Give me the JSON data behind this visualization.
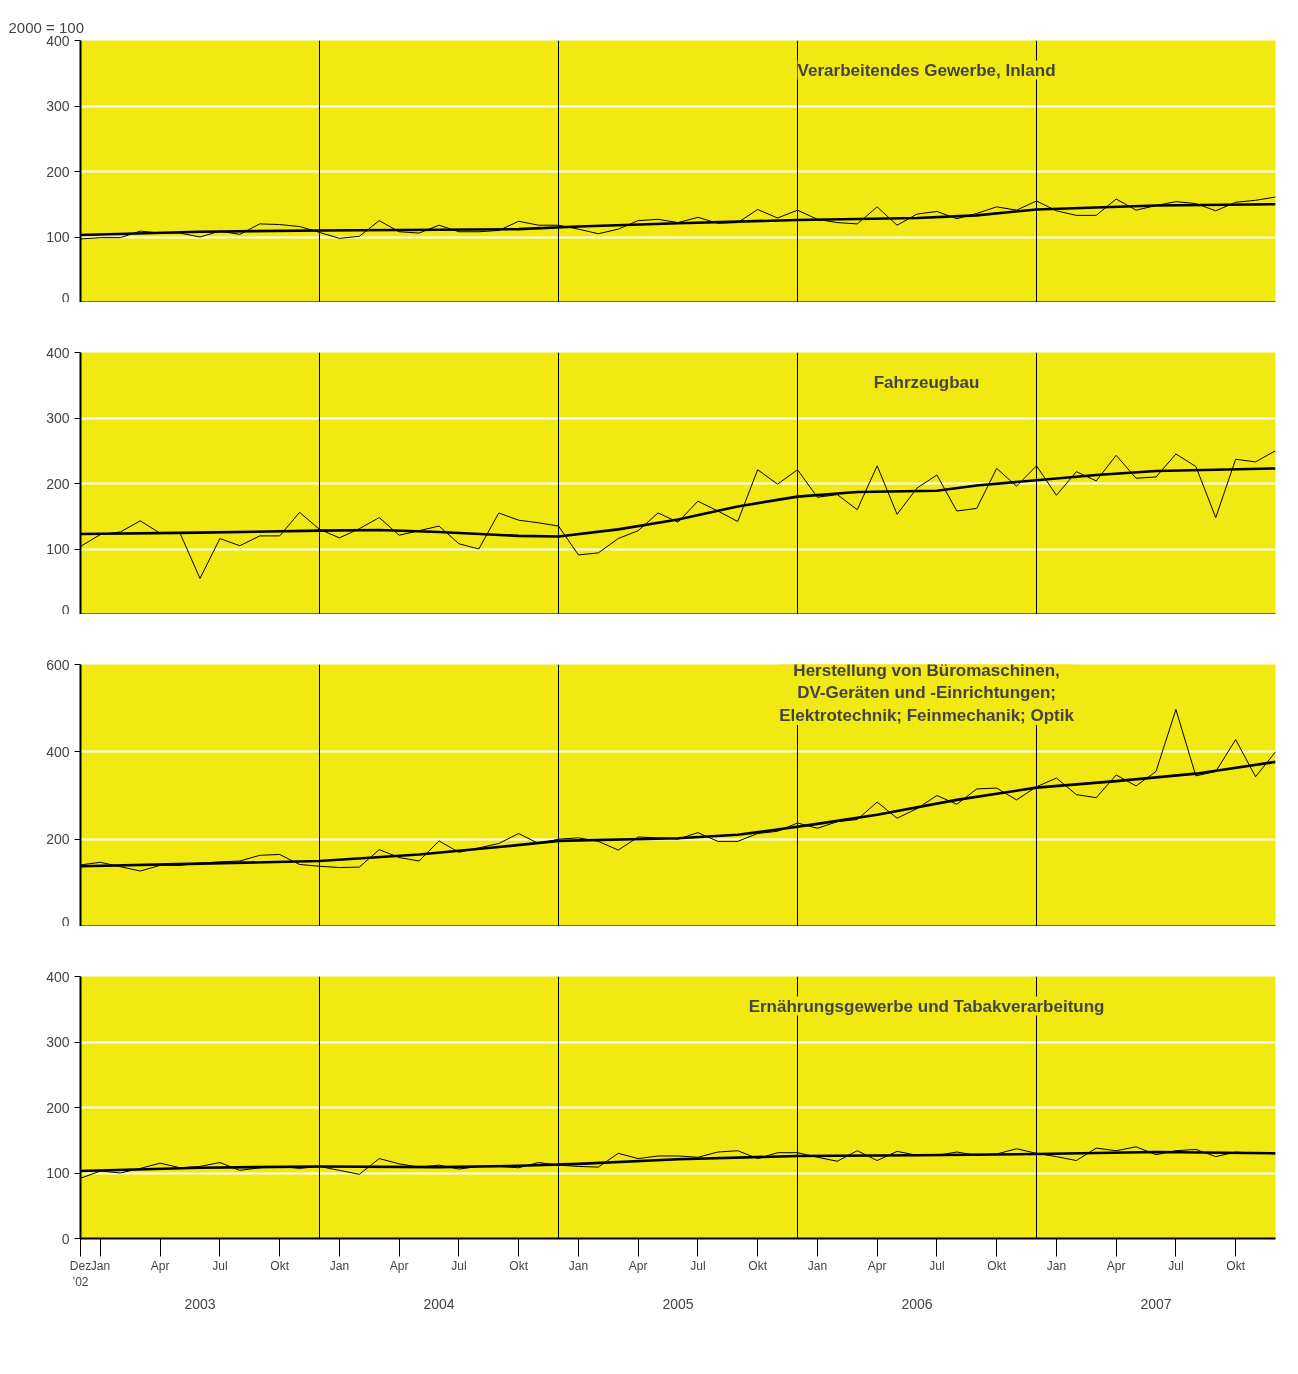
{
  "chart_data": [
    {
      "type": "line",
      "title": "Verarbeitendes Gewerbe, Inland",
      "ylabel": "2000 = 100",
      "xlim": [
        "2002-12",
        "2007-12"
      ],
      "ylim": [
        0,
        400
      ],
      "yticks": [
        0,
        100,
        200,
        300,
        400
      ],
      "grid": "y",
      "tick_labels": "y",
      "x": [
        "2002-12",
        "2003-01",
        "2003-02",
        "2003-03",
        "2003-04",
        "2003-05",
        "2003-06",
        "2003-07",
        "2003-08",
        "2003-09",
        "2003-10",
        "2003-11",
        "2003-12",
        "2004-01",
        "2004-02",
        "2004-03",
        "2004-04",
        "2004-05",
        "2004-06",
        "2004-07",
        "2004-08",
        "2004-09",
        "2004-10",
        "2004-11",
        "2004-12",
        "2005-01",
        "2005-02",
        "2005-03",
        "2005-04",
        "2005-05",
        "2005-06",
        "2005-07",
        "2005-08",
        "2005-09",
        "2005-10",
        "2005-11",
        "2005-12",
        "2006-01",
        "2006-02",
        "2006-03",
        "2006-04",
        "2006-05",
        "2006-06",
        "2006-07",
        "2006-08",
        "2006-09",
        "2006-10",
        "2006-11",
        "2006-12",
        "2007-01",
        "2007-02",
        "2007-03",
        "2007-04",
        "2007-05",
        "2007-06",
        "2007-07",
        "2007-08",
        "2007-09",
        "2007-10",
        "2007-11",
        "2007-12"
      ],
      "ref_lines": [
        {
          "axis": "x",
          "value": "2003-12",
          "color": "#000000"
        },
        {
          "axis": "x",
          "value": "2004-12",
          "color": "#000000"
        },
        {
          "axis": "x",
          "value": "2005-12",
          "color": "#000000"
        },
        {
          "axis": "x",
          "value": "2006-12",
          "color": "#000000"
        }
      ],
      "series": [
        {
          "color": "#000000",
          "values": [
            97,
            99,
            99,
            109,
            106,
            106,
            100,
            109,
            104,
            120,
            119,
            116,
            107,
            98,
            101,
            125,
            108,
            106,
            118,
            108,
            108,
            110,
            124,
            118,
            118,
            112,
            105,
            112,
            125,
            127,
            122,
            130,
            121,
            122,
            142,
            129,
            141,
            127,
            122,
            120,
            146,
            118,
            135,
            139,
            128,
            136,
            146,
            141,
            155,
            140,
            133,
            133,
            158,
            141,
            148,
            154,
            151,
            140,
            153,
            156,
            161
          ]
        },
        {
          "type": "line",
          "color": "#000000",
          "x": [
            "2002-12",
            "2003-06",
            "2003-12",
            "2004-06",
            "2004-10",
            "2005-01",
            "2005-06",
            "2005-12",
            "2006-06",
            "2006-09",
            "2006-12",
            "2007-06",
            "2007-12"
          ],
          "values": [
            103,
            108,
            110,
            111,
            112,
            116,
            121,
            126,
            129,
            133,
            142,
            148,
            150
          ]
        }
      ]
    },
    {
      "type": "line",
      "title": "Fahrzeugbau",
      "xlim": [
        "2002-12",
        "2007-12"
      ],
      "ylim": [
        0,
        400
      ],
      "yticks": [
        0,
        100,
        200,
        300,
        400
      ],
      "grid": "y",
      "tick_labels": "y",
      "x": [
        "2002-12",
        "2003-01",
        "2003-02",
        "2003-03",
        "2003-04",
        "2003-05",
        "2003-06",
        "2003-07",
        "2003-08",
        "2003-09",
        "2003-10",
        "2003-11",
        "2003-12",
        "2004-01",
        "2004-02",
        "2004-03",
        "2004-04",
        "2004-05",
        "2004-06",
        "2004-07",
        "2004-08",
        "2004-09",
        "2004-10",
        "2004-11",
        "2004-12",
        "2005-01",
        "2005-02",
        "2005-03",
        "2005-04",
        "2005-05",
        "2005-06",
        "2005-07",
        "2005-08",
        "2005-09",
        "2005-10",
        "2005-11",
        "2005-12",
        "2006-01",
        "2006-02",
        "2006-03",
        "2006-04",
        "2006-05",
        "2006-06",
        "2006-07",
        "2006-08",
        "2006-09",
        "2006-10",
        "2006-11",
        "2006-12",
        "2007-01",
        "2007-02",
        "2007-03",
        "2007-04",
        "2007-05",
        "2007-06",
        "2007-07",
        "2007-08",
        "2007-09",
        "2007-10",
        "2007-11",
        "2007-12"
      ],
      "ref_lines": [
        {
          "axis": "x",
          "value": "2003-12",
          "color": "#000000"
        },
        {
          "axis": "x",
          "value": "2004-12",
          "color": "#000000"
        },
        {
          "axis": "x",
          "value": "2005-12",
          "color": "#000000"
        },
        {
          "axis": "x",
          "value": "2006-12",
          "color": "#000000"
        }
      ],
      "series": [
        {
          "color": "#000000",
          "values": [
            104,
            122,
            126,
            143,
            124,
            124,
            55,
            116,
            105,
            120,
            120,
            156,
            130,
            117,
            131,
            148,
            121,
            128,
            135,
            108,
            100,
            155,
            144,
            140,
            135,
            91,
            94,
            116,
            128,
            155,
            141,
            173,
            158,
            142,
            221,
            199,
            221,
            179,
            183,
            160,
            227,
            153,
            193,
            213,
            158,
            162,
            223,
            196,
            227,
            182,
            218,
            204,
            243,
            208,
            210,
            245,
            226,
            148,
            237,
            233,
            250
          ]
        },
        {
          "type": "line",
          "color": "#000000",
          "x": [
            "2002-12",
            "2003-06",
            "2003-12",
            "2004-03",
            "2004-06",
            "2004-10",
            "2004-12",
            "2005-03",
            "2005-06",
            "2005-09",
            "2005-12",
            "2006-03",
            "2006-07",
            "2006-09",
            "2006-12",
            "2007-03",
            "2007-06",
            "2007-09",
            "2007-12"
          ],
          "values": [
            123,
            125,
            128,
            129,
            126,
            120,
            119,
            130,
            145,
            165,
            180,
            187,
            189,
            197,
            205,
            213,
            219,
            221,
            223
          ]
        }
      ]
    },
    {
      "type": "line",
      "title": "Herstellung von Büromaschinen,\nDV-Geräten und -Einrichtungen;\nElektrotechnik; Feinmechanik; Optik",
      "xlim": [
        "2002-12",
        "2007-12"
      ],
      "ylim": [
        0,
        600
      ],
      "yticks": [
        0,
        200,
        400,
        600
      ],
      "grid": "y",
      "tick_labels": "y",
      "x": [
        "2002-12",
        "2003-01",
        "2003-02",
        "2003-03",
        "2003-04",
        "2003-05",
        "2003-06",
        "2003-07",
        "2003-08",
        "2003-09",
        "2003-10",
        "2003-11",
        "2003-12",
        "2004-01",
        "2004-02",
        "2004-03",
        "2004-04",
        "2004-05",
        "2004-06",
        "2004-07",
        "2004-08",
        "2004-09",
        "2004-10",
        "2004-11",
        "2004-12",
        "2005-01",
        "2005-02",
        "2005-03",
        "2005-04",
        "2005-05",
        "2005-06",
        "2005-07",
        "2005-08",
        "2005-09",
        "2005-10",
        "2005-11",
        "2005-12",
        "2006-01",
        "2006-02",
        "2006-03",
        "2006-04",
        "2006-05",
        "2006-06",
        "2006-07",
        "2006-08",
        "2006-09",
        "2006-10",
        "2006-11",
        "2006-12",
        "2007-01",
        "2007-02",
        "2007-03",
        "2007-04",
        "2007-05",
        "2007-06",
        "2007-07",
        "2007-08",
        "2007-09",
        "2007-10",
        "2007-11",
        "2007-12"
      ],
      "ref_lines": [
        {
          "axis": "x",
          "value": "2003-12",
          "color": "#000000"
        },
        {
          "axis": "x",
          "value": "2004-12",
          "color": "#000000"
        },
        {
          "axis": "x",
          "value": "2005-12",
          "color": "#000000"
        },
        {
          "axis": "x",
          "value": "2006-12",
          "color": "#000000"
        }
      ],
      "series": [
        {
          "color": "#000000",
          "values": [
            141,
            147,
            137,
            127,
            140,
            140,
            145,
            148,
            150,
            163,
            165,
            142,
            138,
            135,
            136,
            176,
            158,
            150,
            196,
            170,
            180,
            190,
            213,
            190,
            200,
            203,
            195,
            175,
            205,
            203,
            200,
            215,
            195,
            195,
            213,
            218,
            237,
            225,
            240,
            245,
            285,
            248,
            270,
            300,
            280,
            315,
            317,
            290,
            320,
            340,
            302,
            295,
            347,
            322,
            355,
            497,
            345,
            355,
            428,
            343,
            400
          ]
        },
        {
          "type": "line",
          "color": "#000000",
          "x": [
            "2002-12",
            "2003-06",
            "2003-12",
            "2004-05",
            "2004-09",
            "2004-12",
            "2005-06",
            "2005-09",
            "2005-11",
            "2006-01",
            "2006-04",
            "2006-08",
            "2006-12",
            "2007-04",
            "2007-08",
            "2007-12"
          ],
          "values": [
            138,
            144,
            150,
            165,
            182,
            196,
            202,
            210,
            222,
            235,
            256,
            290,
            318,
            333,
            350,
            377
          ]
        }
      ]
    },
    {
      "type": "line",
      "title": "Ernährungsgewerbe und Tabakverarbeitung",
      "xlim": [
        "2002-12",
        "2007-12"
      ],
      "ylim": [
        0,
        400
      ],
      "yticks": [
        0,
        100,
        200,
        300,
        400
      ],
      "grid": "y",
      "x": [
        "2002-12",
        "2003-01",
        "2003-02",
        "2003-03",
        "2003-04",
        "2003-05",
        "2003-06",
        "2003-07",
        "2003-08",
        "2003-09",
        "2003-10",
        "2003-11",
        "2003-12",
        "2004-01",
        "2004-02",
        "2004-03",
        "2004-04",
        "2004-05",
        "2004-06",
        "2004-07",
        "2004-08",
        "2004-09",
        "2004-10",
        "2004-11",
        "2004-12",
        "2005-01",
        "2005-02",
        "2005-03",
        "2005-04",
        "2005-05",
        "2005-06",
        "2005-07",
        "2005-08",
        "2005-09",
        "2005-10",
        "2005-11",
        "2005-12",
        "2006-01",
        "2006-02",
        "2006-03",
        "2006-04",
        "2006-05",
        "2006-06",
        "2006-07",
        "2006-08",
        "2006-09",
        "2006-10",
        "2006-11",
        "2006-12",
        "2007-01",
        "2007-02",
        "2007-03",
        "2007-04",
        "2007-05",
        "2007-06",
        "2007-07",
        "2007-08",
        "2007-09",
        "2007-10",
        "2007-11",
        "2007-12"
      ],
      "xticks": [
        {
          "value": "2002-12",
          "label": "Dez\n’02"
        },
        {
          "value": "2003-01",
          "label": "Jan"
        },
        {
          "value": "2003-04",
          "label": "Apr"
        },
        {
          "value": "2003-07",
          "label": "Jul"
        },
        {
          "value": "2003-10",
          "label": "Okt"
        },
        {
          "value": "2004-01",
          "label": "Jan"
        },
        {
          "value": "2004-04",
          "label": "Apr"
        },
        {
          "value": "2004-07",
          "label": "Jul"
        },
        {
          "value": "2004-10",
          "label": "Okt"
        },
        {
          "value": "2005-01",
          "label": "Jan"
        },
        {
          "value": "2005-04",
          "label": "Apr"
        },
        {
          "value": "2005-07",
          "label": "Jul"
        },
        {
          "value": "2005-10",
          "label": "Okt"
        },
        {
          "value": "2006-01",
          "label": "Jan"
        },
        {
          "value": "2006-04",
          "label": "Apr"
        },
        {
          "value": "2006-07",
          "label": "Jul"
        },
        {
          "value": "2006-10",
          "label": "Okt"
        },
        {
          "value": "2007-01",
          "label": "Jan"
        },
        {
          "value": "2007-04",
          "label": "Apr"
        },
        {
          "value": "2007-07",
          "label": "Jul"
        },
        {
          "value": "2007-10",
          "label": "Okt"
        }
      ],
      "x2lim": [
        "2002-12",
        "2007-12"
      ],
      "x2ticks": [
        {
          "value": "2003-06",
          "label": "2003"
        },
        {
          "value": "2004-06",
          "label": "2004"
        },
        {
          "value": "2005-06",
          "label": "2005"
        },
        {
          "value": "2006-06",
          "label": "2006"
        },
        {
          "value": "2007-06",
          "label": "2007"
        }
      ],
      "ref_lines": [
        {
          "axis": "x",
          "value": "2003-12",
          "color": "#000000"
        },
        {
          "axis": "x",
          "value": "2004-12",
          "color": "#000000"
        },
        {
          "axis": "x",
          "value": "2005-12",
          "color": "#000000"
        },
        {
          "axis": "x",
          "value": "2006-12",
          "color": "#000000"
        }
      ],
      "series": [
        {
          "color": "#000000",
          "values": [
            92,
            103,
            100,
            107,
            115,
            108,
            110,
            116,
            104,
            108,
            110,
            107,
            110,
            104,
            98,
            122,
            114,
            109,
            112,
            106,
            110,
            110,
            108,
            116,
            112,
            110,
            109,
            130,
            122,
            126,
            126,
            124,
            132,
            134,
            122,
            131,
            131,
            124,
            118,
            134,
            119,
            133,
            127,
            127,
            132,
            127,
            129,
            137,
            130,
            125,
            119,
            138,
            134,
            140,
            128,
            134,
            136,
            125,
            132,
            130,
            130
          ]
        },
        {
          "type": "line",
          "color": "#000000",
          "x": [
            "2002-12",
            "2003-06",
            "2003-12",
            "2004-06",
            "2004-10",
            "2005-01",
            "2005-06",
            "2005-12",
            "2006-06",
            "2006-12",
            "2007-06",
            "2007-12"
          ],
          "values": [
            103,
            108,
            110,
            109,
            111,
            114,
            121,
            126,
            127,
            129,
            132,
            130
          ]
        }
      ]
    }
  ]
}
